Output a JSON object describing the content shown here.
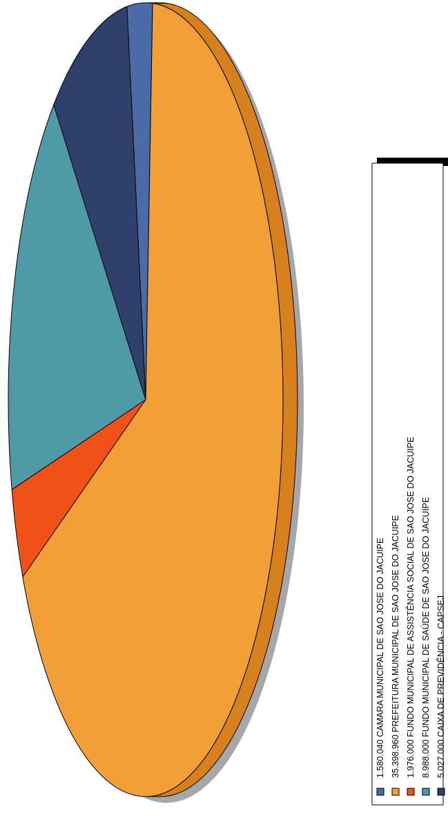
{
  "chart_data": {
    "type": "pie",
    "title": "",
    "three_d": true,
    "legend_position": "right",
    "slices": [
      {
        "value": 1580040,
        "label": "1.580.040  CAMARA MUNICIPAL  DE SAO JOSE DO JACUIPE",
        "color": "#4a6ba8",
        "side_color": "#2f4f86"
      },
      {
        "value": 35398960,
        "label": "35.398.960  PREFEITURA MUNICIPAL  DE SAO JOSE DO JACUIPE",
        "color": "#f39f37",
        "side_color": "#d6801e"
      },
      {
        "value": 1976000,
        "label": "1.976.000  FUNDO MUNICIPAL  DE ASSISTÊNCIA SOCIAL DE SAO JOSE DO JACUIPE",
        "color": "#f05117",
        "side_color": "#cd3a07"
      },
      {
        "value": 8988000,
        "label": "8.988.000  FUNDO MUNICIPAL  DE SAÚDE DE SAO JOSE DO JACUIPE",
        "color": "#4e9aa7",
        "side_color": "#2d7a8b"
      },
      {
        "value": 5027000,
        "label": "5.027.000  CAIXA DE PREVIDÊNCIA - CAPSEJ",
        "color": "#2e416b",
        "side_color": "#15264f"
      }
    ]
  }
}
